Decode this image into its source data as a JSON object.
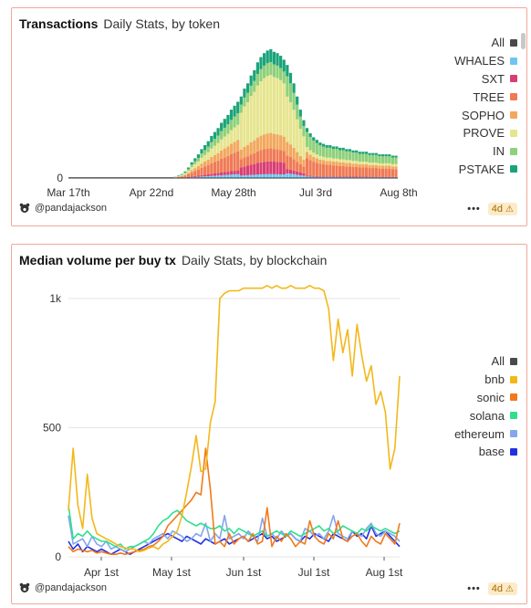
{
  "charts": [
    {
      "title": "Transactions",
      "subtitle": "Daily Stats, by token",
      "author": "@pandajackson",
      "age": "4d",
      "menu": "•••"
    },
    {
      "title": "Median volume per buy tx",
      "subtitle": "Daily Stats, by blockchain",
      "author": "@pandajackson",
      "age": "4d",
      "menu": "•••"
    }
  ],
  "chart_data": [
    {
      "type": "bar",
      "stacked": true,
      "title": "Transactions",
      "subtitle": "Daily Stats, by token",
      "x_ticks": [
        "Mar 17th",
        "Apr 22nd",
        "May 28th",
        "Jul 3rd",
        "Aug 8th"
      ],
      "y_ticks": [
        "0"
      ],
      "legend_position": "right",
      "legend": [
        {
          "name": "All",
          "color": "#4a4a4a"
        },
        {
          "name": "WHALES",
          "color": "#6ec6f0"
        },
        {
          "name": "SXT",
          "color": "#d83e73"
        },
        {
          "name": "TREE",
          "color": "#ef7a55"
        },
        {
          "name": "SOPHO",
          "color": "#f2a85e"
        },
        {
          "name": "PROVE",
          "color": "#e6e58f"
        },
        {
          "name": "IN",
          "color": "#8fd07a"
        },
        {
          "name": "PSTAKE",
          "color": "#1aa37a"
        }
      ],
      "approx_relative_totals": [
        0,
        0,
        0,
        0,
        0,
        0,
        0,
        0,
        0,
        0,
        0,
        0,
        0,
        0,
        0,
        0,
        0,
        0,
        0,
        0,
        0,
        0,
        0,
        0,
        0,
        0,
        0,
        0,
        0,
        0,
        0,
        0,
        0.01,
        0.02,
        0.03,
        0.05,
        0.08,
        0.12,
        0.15,
        0.18,
        0.22,
        0.25,
        0.28,
        0.32,
        0.35,
        0.38,
        0.42,
        0.45,
        0.48,
        0.52,
        0.55,
        0.58,
        0.62,
        0.68,
        0.72,
        0.78,
        0.82,
        0.88,
        0.92,
        0.95,
        0.97,
        0.98,
        0.96,
        0.95,
        0.93,
        0.9,
        0.86,
        0.8,
        0.72,
        0.62,
        0.52,
        0.44,
        0.38,
        0.34,
        0.31,
        0.29,
        0.27,
        0.26,
        0.25,
        0.25,
        0.24,
        0.24,
        0.23,
        0.23,
        0.22,
        0.22,
        0.21,
        0.21,
        0.2,
        0.2,
        0.2,
        0.19,
        0.19,
        0.19,
        0.18,
        0.18,
        0.18,
        0.18,
        0.17,
        0.17
      ]
    },
    {
      "type": "line",
      "title": "Median volume per buy tx",
      "subtitle": "Daily Stats, by blockchain",
      "x_ticks": [
        "Apr 1st",
        "May 1st",
        "Jun 1st",
        "Jul 1st",
        "Aug 1st"
      ],
      "y_ticks": [
        "0",
        "500",
        "1k"
      ],
      "ylim": [
        0,
        1050
      ],
      "legend_position": "right",
      "legend": [
        {
          "name": "All",
          "color": "#4a4a4a"
        },
        {
          "name": "bnb",
          "color": "#f2b81b"
        },
        {
          "name": "sonic",
          "color": "#f07a1a"
        },
        {
          "name": "solana",
          "color": "#2ee08d"
        },
        {
          "name": "ethereum",
          "color": "#84a6ee"
        },
        {
          "name": "base",
          "color": "#2231e0"
        }
      ],
      "series": [
        {
          "name": "bnb",
          "values": [
            180,
            420,
            200,
            110,
            320,
            150,
            90,
            80,
            70,
            60,
            50,
            40,
            35,
            30,
            30,
            20,
            25,
            35,
            40,
            30,
            50,
            60,
            80,
            100,
            160,
            250,
            350,
            470,
            330,
            340,
            520,
            600,
            1000,
            1020,
            1030,
            1030,
            1030,
            1040,
            1040,
            1040,
            1040,
            1040,
            1050,
            1040,
            1050,
            1040,
            1040,
            1050,
            1040,
            1040,
            1040,
            1050,
            1040,
            1040,
            1030,
            960,
            760,
            920,
            790,
            880,
            700,
            900,
            780,
            680,
            740,
            590,
            640,
            560,
            340,
            420,
            700
          ]
        },
        {
          "name": "sonic",
          "values": [
            40,
            20,
            30,
            25,
            20,
            25,
            15,
            20,
            15,
            10,
            10,
            15,
            10,
            15,
            20,
            25,
            30,
            40,
            45,
            60,
            80,
            120,
            140,
            160,
            180,
            200,
            220,
            250,
            240,
            420,
            260,
            50,
            60,
            40,
            90,
            50,
            70,
            80,
            60,
            90,
            50,
            60,
            190,
            40,
            80,
            60,
            90,
            70,
            40,
            60,
            50,
            140,
            80,
            60,
            50,
            90,
            70,
            140,
            70,
            60,
            80,
            90,
            60,
            40,
            80,
            60,
            50,
            90,
            70,
            50,
            130
          ]
        },
        {
          "name": "solana",
          "values": [
            200,
            70,
            90,
            80,
            100,
            80,
            70,
            60,
            60,
            50,
            40,
            50,
            30,
            40,
            40,
            50,
            60,
            70,
            90,
            120,
            140,
            150,
            170,
            180,
            160,
            140,
            130,
            120,
            130,
            120,
            110,
            110,
            120,
            100,
            110,
            90,
            110,
            100,
            90,
            80,
            90,
            100,
            80,
            90,
            100,
            90,
            80,
            100,
            90,
            80,
            90,
            100,
            110,
            120,
            100,
            110,
            90,
            100,
            120,
            110,
            100,
            90,
            110,
            100,
            120,
            110,
            100,
            110,
            100,
            90,
            100
          ]
        },
        {
          "name": "ethereum",
          "values": [
            160,
            50,
            60,
            70,
            40,
            80,
            50,
            40,
            60,
            30,
            40,
            30,
            20,
            30,
            40,
            50,
            60,
            50,
            70,
            80,
            90,
            70,
            100,
            90,
            80,
            60,
            70,
            90,
            80,
            130,
            60,
            90,
            70,
            160,
            70,
            80,
            90,
            70,
            100,
            80,
            60,
            150,
            80,
            90,
            70,
            100,
            80,
            90,
            70,
            60,
            110,
            100,
            80,
            90,
            70,
            100,
            160,
            90,
            80,
            70,
            100,
            90,
            80,
            110,
            130,
            90,
            80,
            100,
            90,
            80,
            60
          ]
        },
        {
          "name": "base",
          "values": [
            60,
            30,
            50,
            20,
            40,
            30,
            20,
            30,
            20,
            10,
            20,
            30,
            20,
            10,
            20,
            30,
            40,
            50,
            60,
            70,
            80,
            90,
            80,
            70,
            60,
            80,
            70,
            60,
            50,
            70,
            60,
            50,
            60,
            70,
            50,
            60,
            70,
            80,
            60,
            70,
            80,
            90,
            70,
            80,
            60,
            70,
            80,
            90,
            70,
            60,
            80,
            70,
            90,
            80,
            70,
            60,
            90,
            80,
            70,
            60,
            100,
            80,
            90,
            70,
            120,
            80,
            90,
            100,
            80,
            60,
            40
          ]
        }
      ]
    }
  ]
}
